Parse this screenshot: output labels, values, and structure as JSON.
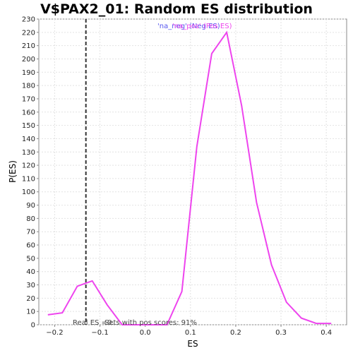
{
  "chart_data": {
    "type": "line",
    "title": "V$PAX2_01: Random ES distribution",
    "xlabel": "ES",
    "ylabel": "P(ES)",
    "xlim": [
      -0.235,
      0.445
    ],
    "ylim": [
      0,
      230
    ],
    "x_ticks": [
      -0.2,
      -0.1,
      0.0,
      0.1,
      0.2,
      0.3,
      0.4
    ],
    "x_tick_labels": [
      "−0.2",
      "−0.1",
      "0.0",
      "0.1",
      "0.2",
      "0.3",
      "0.4"
    ],
    "y_ticks": [
      0,
      10,
      20,
      30,
      40,
      50,
      60,
      70,
      80,
      90,
      100,
      110,
      120,
      130,
      140,
      150,
      160,
      170,
      180,
      190,
      200,
      210,
      220,
      230
    ],
    "grid": true,
    "series": [
      {
        "name": "",
        "color": "#ee44ee",
        "x": [
          -0.215,
          -0.183,
          -0.15,
          -0.117,
          -0.084,
          -0.051,
          -0.018,
          0.015,
          0.048,
          0.081,
          0.114,
          0.147,
          0.18,
          0.213,
          0.246,
          0.279,
          0.312,
          0.345,
          0.378,
          0.411
        ],
        "y": [
          7.5,
          9,
          29,
          33,
          15,
          0,
          0,
          0,
          0,
          25,
          134,
          204,
          220,
          165,
          92,
          45,
          17,
          5,
          1,
          1
        ]
      }
    ],
    "real_es_line": {
      "x": -0.131,
      "color": "#333333",
      "style": "dashed"
    },
    "legend": {
      "placement": "top-center",
      "entries": [
        {
          "text": "'na_neg' (Neg ES)",
          "color": "#5555ee"
        },
        {
          "text": "'na_pos' (Pos ES)",
          "color": "#ee44ee"
        }
      ]
    },
    "annotations": [
      {
        "text": "Real ES =0.",
        "color": "#444444"
      },
      {
        "text": "Sets with pos scores: 91%",
        "color": "#444444"
      }
    ]
  }
}
